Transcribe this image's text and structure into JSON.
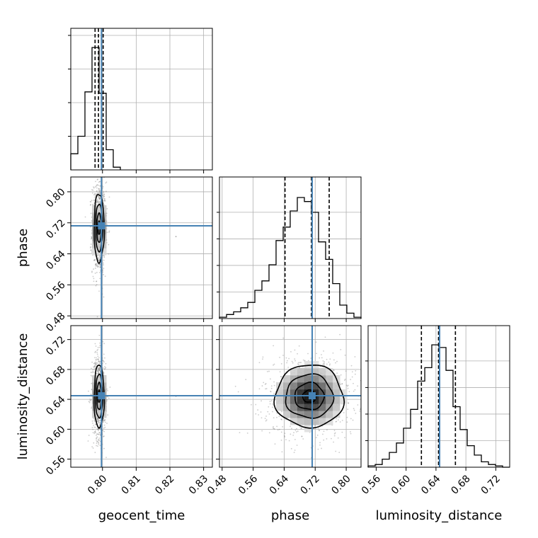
{
  "chart_data": {
    "type": "corner",
    "parameters": [
      "geocent_time",
      "phase",
      "luminosity_distance"
    ],
    "axis_labels": {
      "geocent_time": "geocent_time",
      "phase": "phase",
      "luminosity_distance": "luminosity_distance"
    },
    "ranges": {
      "geocent_time": [
        0.7906,
        0.8326
      ],
      "phase": [
        0.4731,
        0.8382
      ],
      "luminosity_distance": [
        0.5492,
        0.7386
      ]
    },
    "ticks": {
      "geocent_time": [
        "0.80",
        "0.81",
        "0.82",
        "0.83"
      ],
      "phase": [
        "0.48",
        "0.56",
        "0.64",
        "0.72",
        "0.80"
      ],
      "luminosity_distance": [
        "0.56",
        "0.60",
        "0.64",
        "0.68",
        "0.72"
      ]
    },
    "truths": {
      "geocent_time": 0.7997,
      "phase": 0.7122,
      "luminosity_distance": 0.6448
    },
    "quantiles": {
      "geocent_time": [
        0.7978,
        0.7988,
        0.8002
      ],
      "phase": [
        0.6422,
        0.7103,
        0.7561
      ],
      "luminosity_distance": [
        0.6205,
        0.6434,
        0.666
      ]
    },
    "histograms": {
      "geocent_time": {
        "edges": [
          0.7906,
          0.7927,
          0.7948,
          0.7969,
          0.799,
          0.8011,
          0.8032,
          0.8053
        ],
        "counts": [
          0.12,
          0.25,
          0.58,
          0.91,
          0.57,
          0.15,
          0.02
        ]
      },
      "phase": {
        "edges": [
          0.4731,
          0.4914,
          0.5096,
          0.5279,
          0.5461,
          0.5644,
          0.5826,
          0.6009,
          0.6191,
          0.6374,
          0.6556,
          0.6739,
          0.6921,
          0.7104,
          0.7286,
          0.7469,
          0.7651,
          0.7834,
          0.8016,
          0.8199,
          0.8382
        ],
        "counts": [
          0.01,
          0.03,
          0.05,
          0.08,
          0.12,
          0.21,
          0.28,
          0.4,
          0.58,
          0.68,
          0.8,
          0.9,
          0.87,
          0.79,
          0.57,
          0.44,
          0.26,
          0.1,
          0.04,
          0.01
        ]
      },
      "luminosity_distance": {
        "edges": [
          0.5492,
          0.5587,
          0.5681,
          0.5776,
          0.5871,
          0.5966,
          0.606,
          0.6155,
          0.625,
          0.6344,
          0.6439,
          0.6534,
          0.6628,
          0.6723,
          0.6818,
          0.6913,
          0.7007,
          0.7102,
          0.7197,
          0.7291,
          0.7386
        ],
        "counts": [
          0.01,
          0.02,
          0.06,
          0.11,
          0.18,
          0.29,
          0.43,
          0.64,
          0.74,
          0.91,
          0.89,
          0.72,
          0.45,
          0.28,
          0.16,
          0.09,
          0.04,
          0.02,
          0.01,
          0.0
        ]
      }
    },
    "pairs": [
      {
        "x": "geocent_time",
        "y": "phase",
        "center": [
          0.799,
          0.707
        ],
        "spread": [
          0.00075,
          0.044
        ],
        "rho": 0,
        "contour_levels": [
          0.39,
          0.86,
          1.39,
          2.0
        ],
        "sparse_points": [
          [
            0.8218,
            0.6845
          ]
        ]
      },
      {
        "x": "geocent_time",
        "y": "luminosity_distance",
        "center": [
          0.799,
          0.644
        ],
        "spread": [
          0.00075,
          0.021
        ],
        "rho": 0,
        "contour_levels": [
          0.39,
          0.86,
          1.39,
          2.0
        ],
        "sparse_points": [
          [
            0.8218,
            0.644
          ]
        ]
      },
      {
        "x": "phase",
        "y": "luminosity_distance",
        "center": [
          0.705,
          0.644
        ],
        "spread": [
          0.044,
          0.021
        ],
        "rho": 0,
        "contour_levels": [
          0.39,
          0.86,
          1.39,
          2.0
        ],
        "sparse_points": []
      }
    ],
    "grid": true,
    "truth_color": "#4682b4",
    "quantile_line_style": "dashed"
  }
}
